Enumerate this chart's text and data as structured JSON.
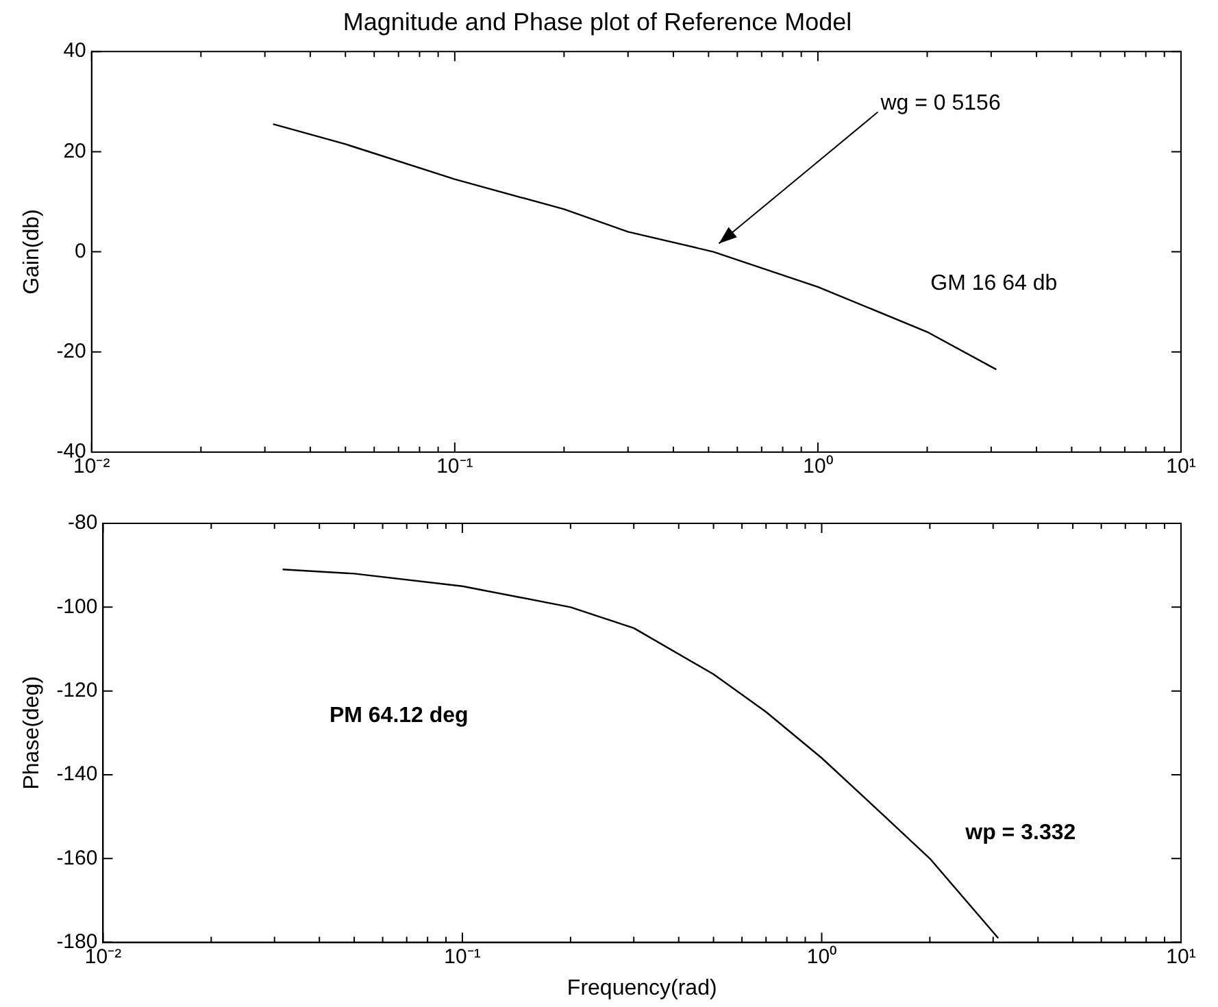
{
  "chart_data": [
    {
      "type": "line",
      "title": "Magnitude and Phase plot of Reference Model",
      "ylabel": "Gain(db)",
      "log": "x",
      "grid": false,
      "legend": false,
      "marker": "none",
      "line_style": "solid",
      "xlim": [
        0.01,
        10
      ],
      "ylim": [
        -40,
        40
      ],
      "yticks": [
        -40,
        -20,
        0,
        20,
        40
      ],
      "xticks": [
        {
          "value": 0.01,
          "label": "10⁻²"
        },
        {
          "value": 0.02,
          "label": null
        },
        {
          "value": 0.03,
          "label": null
        },
        {
          "value": 0.04,
          "label": null
        },
        {
          "value": 0.05,
          "label": null
        },
        {
          "value": 0.06,
          "label": null
        },
        {
          "value": 0.07,
          "label": null
        },
        {
          "value": 0.08,
          "label": null
        },
        {
          "value": 0.09,
          "label": null
        },
        {
          "value": 0.1,
          "label": "10⁻¹"
        },
        {
          "value": 0.2,
          "label": null
        },
        {
          "value": 0.3,
          "label": null
        },
        {
          "value": 0.4,
          "label": null
        },
        {
          "value": 0.5,
          "label": null
        },
        {
          "value": 0.6,
          "label": null
        },
        {
          "value": 0.7,
          "label": null
        },
        {
          "value": 0.8,
          "label": null
        },
        {
          "value": 0.9,
          "label": null
        },
        {
          "value": 1,
          "label": "10⁰"
        },
        {
          "value": 2,
          "label": null
        },
        {
          "value": 3,
          "label": null
        },
        {
          "value": 4,
          "label": null
        },
        {
          "value": 5,
          "label": null
        },
        {
          "value": 6,
          "label": null
        },
        {
          "value": 7,
          "label": null
        },
        {
          "value": 8,
          "label": null
        },
        {
          "value": 9,
          "label": null
        },
        {
          "value": 10,
          "label": "10¹"
        }
      ],
      "series": [
        {
          "color": "#000000",
          "x": [
            0.0316,
            0.05,
            0.1,
            0.2,
            0.3,
            0.5156,
            1,
            2,
            3.1
          ],
          "values": [
            25.5,
            21.5,
            14.5,
            8.5,
            4,
            0,
            -7,
            -16,
            -23.5
          ]
        }
      ],
      "annotations": [
        {
          "text": "wg = 0 5156",
          "x": 0.5156,
          "y": 0
        },
        "GM 16 64 db"
      ]
    },
    {
      "type": "line",
      "xlabel": "Frequency(rad)",
      "ylabel": "Phase(deg)",
      "log": "x",
      "grid": false,
      "legend": false,
      "marker": "none",
      "line_style": "solid",
      "xlim": [
        0.01,
        10
      ],
      "ylim": [
        -180,
        -80
      ],
      "yticks": [
        -180,
        -160,
        -140,
        -120,
        -100,
        -80
      ],
      "xticks": [
        {
          "value": 0.01,
          "label": "10⁻²"
        },
        {
          "value": 0.02,
          "label": null
        },
        {
          "value": 0.03,
          "label": null
        },
        {
          "value": 0.04,
          "label": null
        },
        {
          "value": 0.05,
          "label": null
        },
        {
          "value": 0.06,
          "label": null
        },
        {
          "value": 0.07,
          "label": null
        },
        {
          "value": 0.08,
          "label": null
        },
        {
          "value": 0.09,
          "label": null
        },
        {
          "value": 0.1,
          "label": "10⁻¹"
        },
        {
          "value": 0.2,
          "label": null
        },
        {
          "value": 0.3,
          "label": null
        },
        {
          "value": 0.4,
          "label": null
        },
        {
          "value": 0.5,
          "label": null
        },
        {
          "value": 0.6,
          "label": null
        },
        {
          "value": 0.7,
          "label": null
        },
        {
          "value": 0.8,
          "label": null
        },
        {
          "value": 0.9,
          "label": null
        },
        {
          "value": 1,
          "label": "10⁰"
        },
        {
          "value": 2,
          "label": null
        },
        {
          "value": 3,
          "label": null
        },
        {
          "value": 4,
          "label": null
        },
        {
          "value": 5,
          "label": null
        },
        {
          "value": 6,
          "label": null
        },
        {
          "value": 7,
          "label": null
        },
        {
          "value": 8,
          "label": null
        },
        {
          "value": 9,
          "label": null
        },
        {
          "value": 10,
          "label": "10¹"
        }
      ],
      "series": [
        {
          "color": "#000000",
          "x": [
            0.0316,
            0.05,
            0.1,
            0.2,
            0.3,
            0.5,
            0.7,
            1,
            1.5,
            2,
            3.1
          ],
          "values": [
            -91,
            -92,
            -95,
            -100,
            -105,
            -116,
            -125,
            -136,
            -150,
            -160,
            -179
          ]
        }
      ],
      "annotations": [
        "PM 64.12 deg",
        "wp = 3.332"
      ]
    }
  ]
}
